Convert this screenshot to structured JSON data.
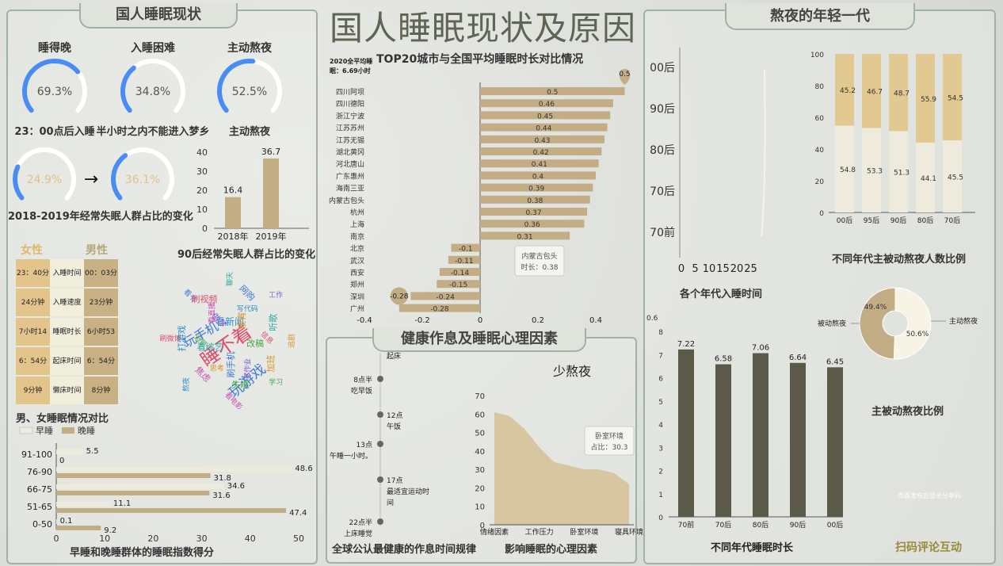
{
  "main_title": "国人睡眠现状及原因",
  "left": {
    "title": "国人睡眠现状",
    "gauges": [
      {
        "head": "睡得晚",
        "value": "69.3%",
        "pct": 69.3,
        "caption": "23：00点后入睡"
      },
      {
        "head": "入睡困难",
        "value": "34.8%",
        "pct": 34.8,
        "caption": "半小时之内不能进入梦乡"
      },
      {
        "head": "主动熬夜",
        "value": "52.5%",
        "pct": 52.5,
        "caption": "主动熬夜"
      }
    ],
    "change": {
      "from": "24.9%",
      "from_pct": 24.9,
      "arrow": "→",
      "to": "36.1%",
      "to_pct": 36.1,
      "caption": "2018-2019年经常失眠人群占比的变化"
    },
    "post90": {
      "caption": "90后经常失眠人群占比的变化",
      "yticks": [
        "0",
        "10",
        "20",
        "30",
        "40"
      ],
      "bars": [
        {
          "cat": "2018年",
          "value": 16.4,
          "label": "16.4"
        },
        {
          "cat": "2019年",
          "value": 36.7,
          "label": "36.7"
        }
      ]
    },
    "gender": {
      "female": "女性",
      "male": "男性",
      "caption": "男、女睡眠情况对比",
      "rows": [
        {
          "f": "23：40分",
          "m": "入睡时间",
          "v": "00：03分"
        },
        {
          "f": "24分钟",
          "m": "入睡速度",
          "v": "23分钟"
        },
        {
          "f": "7小时14分",
          "m": "睡眠时长",
          "v": "6小时53分"
        },
        {
          "f": "6：54分",
          "m": "起床时间",
          "v": "6：54分"
        },
        {
          "f": "9分钟",
          "m": "懒床时间",
          "v": "8分钟"
        }
      ]
    },
    "wordcloud": [
      "睡不着",
      "玩游戏",
      "玩手机",
      "看新闻",
      "追剧",
      "学习",
      "看电影",
      "熬夜",
      "刷微博",
      "看书",
      "聊天",
      "工作",
      "加班",
      "失眠",
      "焦虑",
      "打游戏",
      "刷视频",
      "网购",
      "听歌",
      "写作业",
      "思考",
      "追星",
      "看直播",
      "写代码",
      "信息",
      "刷手机",
      "看综艺",
      "做梦",
      "夜宵",
      "改稿"
    ],
    "score": {
      "legend_early": "早睡",
      "legend_late": "晚睡",
      "caption": "早睡和晚睡群体的睡眠指数得分",
      "xticks": [
        "0",
        "10",
        "20",
        "30",
        "40",
        "50"
      ],
      "cats": [
        "91-100",
        "76-90",
        "66-75",
        "51-65",
        "0-50"
      ],
      "early": [
        5.5,
        48.6,
        34.6,
        11.1,
        0.1
      ],
      "late": [
        0,
        31.8,
        31.6,
        47.4,
        9.2
      ],
      "early_labels": [
        "5.5",
        "48.6",
        "34.6",
        "11.1",
        "0.1"
      ],
      "late_labels": [
        "0",
        "31.8",
        "31.6",
        "47.4",
        "9.2"
      ]
    }
  },
  "center": {
    "avg_note": "2020全平均睡眠：6.69小时",
    "city_title": "TOP20城市与全国平均睡眠时长对比情况",
    "city_xticks": [
      "-0.4",
      "-0.2",
      "0",
      "0.2",
      "0.4"
    ],
    "cities": [
      "四川阿坝",
      "四川德阳",
      "浙江宁波",
      "江苏苏州",
      "江苏无锡",
      "湖北黄冈",
      "河北唐山",
      "广东惠州",
      "海南三亚",
      "内蒙古包头",
      "杭州",
      "上海",
      "南京",
      "北京",
      "武汉",
      "西安",
      "郑州",
      "深圳",
      "广州"
    ],
    "city_values": [
      0.5,
      0.46,
      0.45,
      0.44,
      0.43,
      0.42,
      0.41,
      0.4,
      0.39,
      0.38,
      0.37,
      0.36,
      0.31,
      -0.1,
      -0.11,
      -0.14,
      -0.15,
      -0.24,
      -0.28
    ],
    "city_labels": [
      "0.5",
      "0.46",
      "0.45",
      "0.44",
      "0.43",
      "0.42",
      "0.41",
      "0.4",
      "0.39",
      "0.38",
      "0.37",
      "0.36",
      "0.31",
      "-0.1",
      "-0.11",
      "-0.14",
      "-0.15",
      "-0.24",
      "-0.28"
    ],
    "pin_max": "0.5",
    "pin_min": "-0.28",
    "city_tooltip": [
      "内蒙古包头",
      "时长：0.38"
    ],
    "health_title": "健康作息及睡眠心理因素",
    "timeline": [
      {
        "lines": [
          "起床"
        ],
        "side": "right"
      },
      {
        "lines": [
          "8点半",
          "吃早饭"
        ],
        "side": "left"
      },
      {
        "lines": [
          "12点",
          "午饭"
        ],
        "side": "right"
      },
      {
        "lines": [
          "13点",
          "午睡一小时。"
        ],
        "side": "left"
      },
      {
        "lines": [
          "17点",
          "最适宜运动时",
          "间"
        ],
        "side": "right"
      },
      {
        "lines": [
          "22点半",
          "上床睡觉"
        ],
        "side": "left"
      }
    ],
    "timeline_caption": "全球公认最健康的作息时间规律",
    "psych": {
      "title": "少熬夜",
      "caption": "影响睡眠的心理因素",
      "yticks": [
        "0",
        "10",
        "20",
        "30",
        "40",
        "50",
        "60",
        "70"
      ],
      "cats": [
        "情绪因素",
        "工作压力",
        "卧室环境",
        "寝具环境"
      ],
      "x": [
        0,
        0.33,
        0.67,
        1,
        1.33,
        1.67,
        2,
        2.33,
        2.67,
        3
      ],
      "y": [
        61,
        59,
        52,
        42,
        34,
        32,
        30,
        30,
        28,
        22
      ],
      "tooltip": [
        "卧室环境",
        "占比：30.3"
      ]
    }
  },
  "right": {
    "title": "熬夜的年轻一代",
    "era": {
      "cats": [
        "00后",
        "90后",
        "80后",
        "70后",
        "70前"
      ],
      "xticks": [
        "0",
        "5",
        "10",
        "15",
        "20",
        "25"
      ],
      "caption": "各个年代入睡时间"
    },
    "ratio": {
      "caption": "不同年代主被动熬夜人数比例",
      "yticks": [
        "0",
        "20",
        "40",
        "60",
        "80",
        "100"
      ],
      "cats": [
        "00后",
        "95后",
        "90后",
        "80后",
        "70后"
      ],
      "bottom": [
        54.8,
        53.3,
        51.3,
        44.1,
        45.5
      ],
      "top": [
        45.2,
        46.7,
        48.7,
        55.9,
        54.5
      ],
      "bottom_labels": [
        "54.8",
        "53.3",
        "51.3",
        "44.1",
        "45.5"
      ],
      "top_labels": [
        "45.2",
        "46.7",
        "48.7",
        "55.9",
        "54.5"
      ]
    },
    "pie": {
      "passive_label": "被动熬夜",
      "active_label": "主动熬夜",
      "passive": 49.4,
      "active": 50.6,
      "passive_text": "49.4%",
      "active_text": "50.6%",
      "caption": "主被动熬夜比例"
    },
    "hours": {
      "caption": "不同年代睡眠时长",
      "ytop": "0.6",
      "yticks": [
        "0",
        "1",
        "2",
        "3",
        "4",
        "5",
        "6",
        "7",
        "8"
      ],
      "cats": [
        "70前",
        "70后",
        "80后",
        "90后",
        "00后"
      ],
      "values": [
        7.22,
        6.58,
        7.06,
        6.64,
        6.45
      ],
      "labels": [
        "7.22",
        "6.58",
        "7.06",
        "6.64",
        "6.45"
      ]
    },
    "watermark": "页面发布后显示分享码",
    "scan": "扫码评论互动"
  },
  "colors": {
    "tan": "#c2ad84",
    "dark_olive": "#5b5a48",
    "cream": "#eeebdc",
    "blue": "#4a8cf5",
    "light_tan": "#dfc189"
  }
}
